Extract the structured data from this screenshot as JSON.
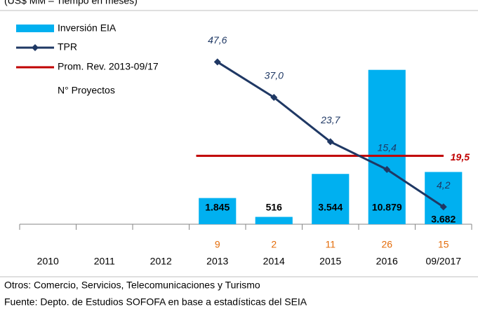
{
  "chart_data": {
    "type": "bar-line",
    "subtitle": "(US$ MM – Tiempo en meses)",
    "categories": [
      "2010",
      "2011",
      "2012",
      "2013",
      "2014",
      "2015",
      "2016",
      "09/2017"
    ],
    "series": [
      {
        "name": "Inversión EIA",
        "type": "bar",
        "color": "#00b0f0",
        "axis": "y",
        "values": [
          null,
          null,
          null,
          1845,
          516,
          3544,
          10879,
          3682
        ],
        "value_labels": [
          null,
          null,
          null,
          "1.845",
          "516",
          "3.544",
          "10.879",
          "3.682"
        ]
      },
      {
        "name": "TPR",
        "type": "line",
        "color": "#1f3864",
        "axis": "y2",
        "values": [
          null,
          null,
          null,
          47.6,
          37.0,
          23.7,
          15.4,
          4.2
        ],
        "value_labels": [
          null,
          null,
          null,
          "47,6",
          "37,0",
          "23,7",
          "15,4",
          "4,2"
        ]
      }
    ],
    "average": {
      "name": "Prom. Rev. 2013-09/17",
      "color": "#c00000",
      "axis": "y2",
      "value": 19.5,
      "value_label": "19,5"
    },
    "projects": {
      "name": "N°  Proyectos",
      "color": "#e46c0a",
      "values": [
        null,
        null,
        null,
        9,
        2,
        11,
        26,
        15
      ]
    },
    "ylim": [
      0,
      12000
    ],
    "y2lim": [
      -1,
      50
    ],
    "notes": [
      "Otros:  Comercio, Servicios, Telecomunicaciones y Turismo",
      "Fuente: Depto. de Estudios SOFOFA en base a estadísticas del SEIA"
    ]
  }
}
